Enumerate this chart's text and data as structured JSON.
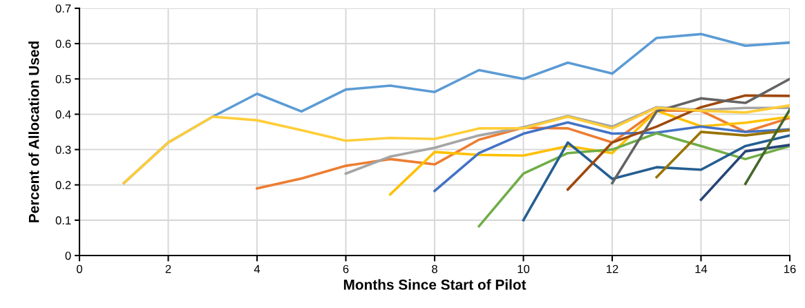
{
  "chart_data": {
    "type": "line",
    "xlabel": "Months Since Start of Pilot",
    "ylabel": "Percent of Allocation Used",
    "xlim": [
      0,
      16
    ],
    "xticks": [
      0,
      2,
      4,
      6,
      8,
      10,
      12,
      14,
      16
    ],
    "ylim": [
      0,
      0.7
    ],
    "yticks": [
      {
        "value": 0,
        "label": "0"
      },
      0.1,
      0.2,
      0.3,
      0.4,
      0.5,
      0.6,
      0.7
    ],
    "grid": true,
    "marker": "none",
    "line_style": "solid",
    "series": [
      {
        "color": "#5b9bd5",
        "x": [
          1,
          2,
          3,
          4,
          5,
          6,
          7,
          8,
          9,
          10,
          11,
          12,
          13,
          14,
          15,
          16
        ],
        "values": [
          0.205,
          0.32,
          0.393,
          0.458,
          0.408,
          0.47,
          0.481,
          0.463,
          0.525,
          0.5,
          0.546,
          0.515,
          0.616,
          0.627,
          0.594,
          0.603
        ]
      },
      {
        "color": "#ed7d31",
        "x": [
          4,
          5,
          6,
          7,
          8,
          9,
          10,
          11,
          12,
          13,
          14,
          15,
          16
        ],
        "values": [
          0.19,
          0.218,
          0.254,
          0.273,
          0.258,
          0.328,
          0.362,
          0.36,
          0.32,
          0.41,
          0.41,
          0.35,
          0.39
        ]
      },
      {
        "color": "#a5a5a5",
        "x": [
          6,
          7,
          8,
          9,
          10,
          11,
          12,
          13,
          14,
          15,
          16
        ],
        "values": [
          0.232,
          0.28,
          0.305,
          0.34,
          0.363,
          0.395,
          0.365,
          0.42,
          0.412,
          0.418,
          0.418
        ]
      },
      {
        "color": "#ffc000",
        "x": [
          7,
          8,
          9,
          10,
          11,
          12,
          13,
          14,
          15,
          16
        ],
        "values": [
          0.173,
          0.293,
          0.285,
          0.283,
          0.31,
          0.29,
          0.41,
          0.366,
          0.376,
          0.393
        ]
      },
      {
        "color": "#4472c4",
        "x": [
          8,
          9,
          10,
          11,
          12,
          13,
          14,
          15,
          16
        ],
        "values": [
          0.183,
          0.29,
          0.345,
          0.377,
          0.345,
          0.348,
          0.365,
          0.35,
          0.357
        ]
      },
      {
        "color": "#70ad47",
        "x": [
          9,
          10,
          11,
          12,
          13,
          14,
          15,
          16
        ],
        "values": [
          0.083,
          0.232,
          0.29,
          0.3,
          0.346,
          0.31,
          0.273,
          0.31
        ]
      },
      {
        "color": "#255e91",
        "x": [
          10,
          11,
          12,
          13,
          14,
          15,
          16
        ],
        "values": [
          0.1,
          0.32,
          0.217,
          0.25,
          0.243,
          0.31,
          0.34
        ]
      },
      {
        "color": "#9e480e",
        "x": [
          11,
          12,
          13,
          14,
          15,
          16
        ],
        "values": [
          0.187,
          0.32,
          0.365,
          0.42,
          0.453,
          0.452
        ]
      },
      {
        "color": "#636363",
        "x": [
          12,
          13,
          14,
          15,
          16
        ],
        "values": [
          0.205,
          0.408,
          0.445,
          0.432,
          0.5
        ]
      },
      {
        "color": "#997300",
        "x": [
          13,
          14,
          15,
          16
        ],
        "values": [
          0.222,
          0.35,
          0.34,
          0.355
        ]
      },
      {
        "color": "#264478",
        "x": [
          14,
          15,
          16
        ],
        "values": [
          0.158,
          0.295,
          0.313
        ]
      },
      {
        "color": "#43682b",
        "x": [
          15,
          16
        ],
        "values": [
          0.203,
          0.413
        ]
      },
      {
        "color": "#ffcd38",
        "x": [
          1,
          2,
          3,
          4,
          5,
          6,
          7,
          8,
          9,
          10,
          11,
          12,
          13,
          14,
          15,
          16
        ],
        "values": [
          0.205,
          0.32,
          0.393,
          0.383,
          0.355,
          0.325,
          0.333,
          0.33,
          0.36,
          0.36,
          0.393,
          0.36,
          0.418,
          0.41,
          0.405,
          0.425
        ]
      }
    ]
  }
}
